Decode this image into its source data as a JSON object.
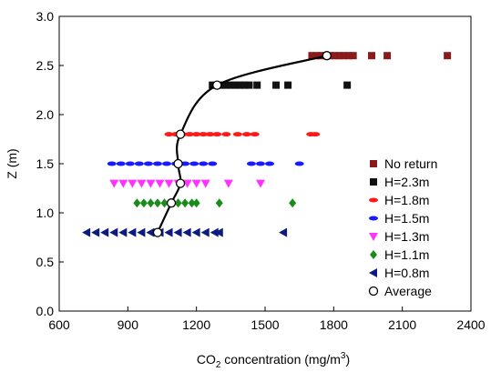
{
  "chart_data": {
    "type": "scatter",
    "x_label": [
      "CO",
      "2",
      " concentration (mg/m",
      "3",
      ")"
    ],
    "y_label": "Z (m)",
    "xlim": [
      600,
      2400
    ],
    "xticks": [
      600,
      900,
      1200,
      1500,
      1800,
      2100,
      2400
    ],
    "ylim": [
      0,
      3
    ],
    "yticks": [
      {
        "value": 0,
        "label": "0.0"
      },
      0.5,
      {
        "value": 1,
        "label": "1.0"
      },
      1.5,
      {
        "value": 2,
        "label": "2.0"
      },
      2.5,
      {
        "value": 3,
        "label": "3.0"
      }
    ],
    "legend": "right",
    "series": [
      {
        "name": "No return",
        "color": "#8b1a1a",
        "marker": "square",
        "x": [
          1705,
          1725,
          1745,
          1765,
          1785,
          1805,
          1825,
          1845,
          1865,
          1885,
          1966,
          2034,
          2297
        ],
        "values": [
          2.6,
          2.6,
          2.6,
          2.6,
          2.6,
          2.6,
          2.6,
          2.6,
          2.6,
          2.6,
          2.6,
          2.6,
          2.6
        ]
      },
      {
        "name": "H=2.3m",
        "color": "#111111",
        "marker": "square",
        "x": [
          1270,
          1290,
          1310,
          1330,
          1350,
          1370,
          1390,
          1410,
          1430,
          1465,
          1548,
          1600,
          1859
        ],
        "values": [
          2.3,
          2.3,
          2.3,
          2.3,
          2.3,
          2.3,
          2.3,
          2.3,
          2.3,
          2.3,
          2.3,
          2.3,
          2.3
        ]
      },
      {
        "name": "H=1.8m",
        "color": "#ff1a1a",
        "marker": "dash",
        "x": [
          1080,
          1110,
          1140,
          1170,
          1200,
          1230,
          1260,
          1290,
          1330,
          1380,
          1420,
          1455,
          1700,
          1720
        ],
        "values": [
          1.8,
          1.8,
          1.8,
          1.8,
          1.8,
          1.8,
          1.8,
          1.8,
          1.8,
          1.8,
          1.8,
          1.8,
          1.8,
          1.8
        ]
      },
      {
        "name": "H=1.5m",
        "color": "#1a1aff",
        "marker": "dash",
        "x": [
          830,
          870,
          910,
          950,
          990,
          1030,
          1070,
          1110,
          1150,
          1190,
          1230,
          1270,
          1440,
          1480,
          1520,
          1650
        ],
        "values": [
          1.5,
          1.5,
          1.5,
          1.5,
          1.5,
          1.5,
          1.5,
          1.5,
          1.5,
          1.5,
          1.5,
          1.5,
          1.5,
          1.5,
          1.5,
          1.5
        ]
      },
      {
        "name": "H=1.3m",
        "color": "#ff33ff",
        "marker": "tri-down",
        "x": [
          840,
          880,
          920,
          960,
          1000,
          1040,
          1080,
          1120,
          1160,
          1200,
          1240,
          1340,
          1480
        ],
        "values": [
          1.3,
          1.3,
          1.3,
          1.3,
          1.3,
          1.3,
          1.3,
          1.3,
          1.3,
          1.3,
          1.3,
          1.3,
          1.3
        ]
      },
      {
        "name": "H=1.1m",
        "color": "#1a8c1a",
        "marker": "diamond",
        "x": [
          940,
          970,
          1000,
          1030,
          1060,
          1090,
          1120,
          1150,
          1180,
          1200,
          1300,
          1620
        ],
        "values": [
          1.1,
          1.1,
          1.1,
          1.1,
          1.1,
          1.1,
          1.1,
          1.1,
          1.1,
          1.1,
          1.1,
          1.1
        ]
      },
      {
        "name": "H=0.8m",
        "color": "#0d1a80",
        "marker": "tri-left",
        "x": [
          720,
          760,
          800,
          840,
          880,
          920,
          960,
          1000,
          1040,
          1080,
          1120,
          1160,
          1200,
          1240,
          1280,
          1300,
          1580
        ],
        "values": [
          0.8,
          0.8,
          0.8,
          0.8,
          0.8,
          0.8,
          0.8,
          0.8,
          0.8,
          0.8,
          0.8,
          0.8,
          0.8,
          0.8,
          0.8,
          0.8,
          0.8
        ]
      },
      {
        "name": "Average",
        "color": "#000000",
        "marker": "circle",
        "line": true,
        "x": [
          1030,
          1090,
          1130,
          1120,
          1130,
          1290,
          1770
        ],
        "values": [
          0.8,
          1.1,
          1.3,
          1.5,
          1.8,
          2.3,
          2.6
        ]
      }
    ]
  }
}
